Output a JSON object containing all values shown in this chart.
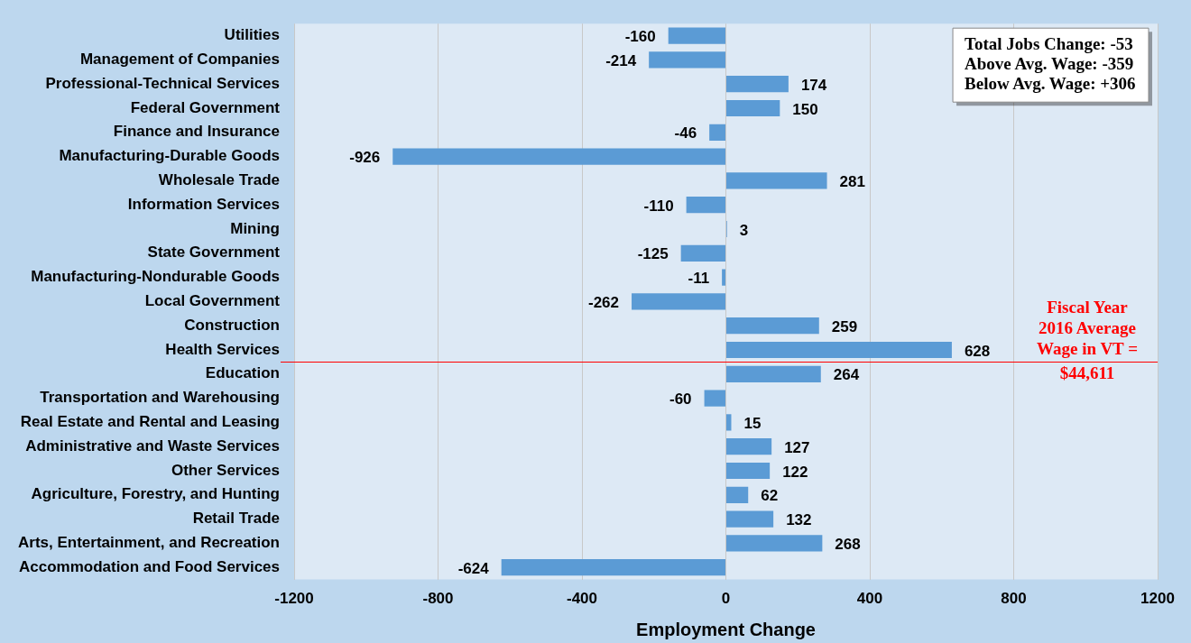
{
  "chart_data": {
    "type": "bar",
    "orientation": "horizontal",
    "xlabel": "Employment Change",
    "categories": [
      "Utilities",
      "Management of Companies",
      "Professional-Technical Services",
      "Federal Government",
      "Finance and Insurance",
      "Manufacturing-Durable Goods",
      "Wholesale Trade",
      "Information Services",
      "Mining",
      "State Government",
      "Manufacturing-Nondurable Goods",
      "Local Government",
      "Construction",
      "Health Services",
      "Education",
      "Transportation and Warehousing",
      "Real Estate and Rental and Leasing",
      "Administrative and Waste Services",
      "Other Services",
      "Agriculture, Forestry, and Hunting",
      "Retail Trade",
      "Arts, Entertainment, and Recreation",
      "Accommodation and Food Services"
    ],
    "values": [
      -160,
      -214,
      174,
      150,
      -46,
      -926,
      281,
      -110,
      3,
      -125,
      -11,
      -262,
      259,
      628,
      264,
      -60,
      15,
      127,
      122,
      62,
      132,
      268,
      -624
    ],
    "color": "#5b9bd5",
    "xlim": [
      -1200,
      1200
    ],
    "xticks": [
      -1200,
      -800,
      -400,
      0,
      400,
      800,
      1200
    ],
    "grid": "x",
    "legend": false,
    "data_labels": true,
    "ref_lines": [
      {
        "axis": "y",
        "value": "Education",
        "color": "#ff0000"
      }
    ],
    "annotations": [
      "Total Jobs Change: -53",
      "Above Avg. Wage: -359",
      "Below Avg. Wage: +306",
      "Fiscal Year 2016 Average Wage in VT = $44,611"
    ]
  }
}
